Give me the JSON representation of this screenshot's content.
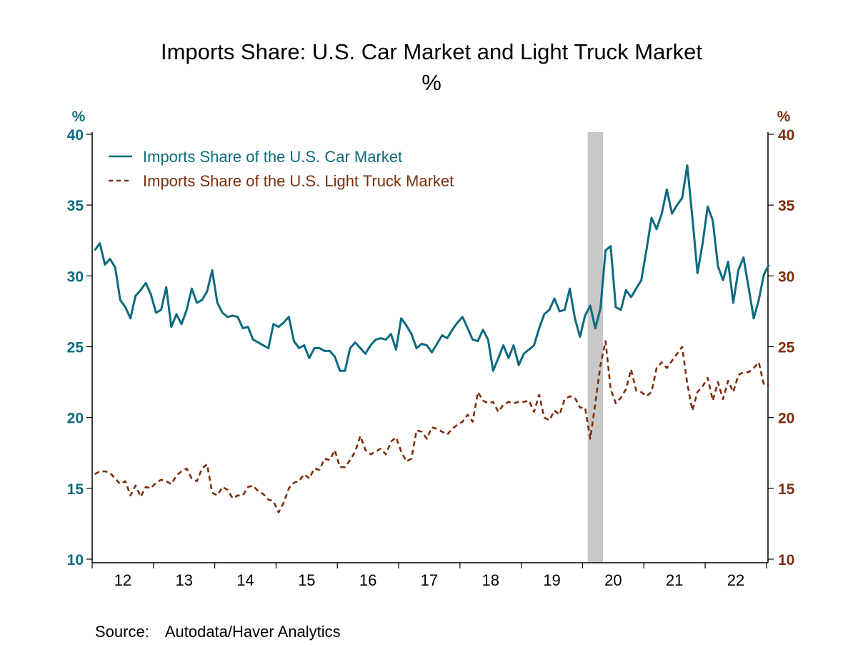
{
  "chart_data": {
    "type": "line",
    "title": "Imports Share: U.S. Car Market and Light Truck Market",
    "subtitle": "%",
    "y_left": {
      "unit_label": "%",
      "range": [
        10,
        40
      ],
      "ticks": [
        "10",
        "15",
        "20",
        "25",
        "30",
        "35",
        "40"
      ],
      "color": "#0e6a7e"
    },
    "y_right": {
      "unit_label": "%",
      "range": [
        10,
        40
      ],
      "ticks": [
        "10",
        "15",
        "20",
        "25",
        "30",
        "35",
        "40"
      ],
      "color": "#7a2e0c"
    },
    "x_tick_labels": [
      "12",
      "13",
      "14",
      "15",
      "16",
      "17",
      "18",
      "19",
      "20",
      "21",
      "22"
    ],
    "x_years": [
      2012,
      2013,
      2014,
      2015,
      2016,
      2017,
      2018,
      2019,
      2020,
      2021,
      2022
    ],
    "grid": false,
    "legend_placement": "top-left",
    "recession_shading": {
      "start": "2020-02",
      "end": "2020-04",
      "color": "#c8c8c8"
    },
    "x": [
      "2012-01",
      "2012-02",
      "2012-03",
      "2012-04",
      "2012-05",
      "2012-06",
      "2012-07",
      "2012-08",
      "2012-09",
      "2012-10",
      "2012-11",
      "2012-12",
      "2013-01",
      "2013-02",
      "2013-03",
      "2013-04",
      "2013-05",
      "2013-06",
      "2013-07",
      "2013-08",
      "2013-09",
      "2013-10",
      "2013-11",
      "2013-12",
      "2014-01",
      "2014-02",
      "2014-03",
      "2014-04",
      "2014-05",
      "2014-06",
      "2014-07",
      "2014-08",
      "2014-09",
      "2014-10",
      "2014-11",
      "2014-12",
      "2015-01",
      "2015-02",
      "2015-03",
      "2015-04",
      "2015-05",
      "2015-06",
      "2015-07",
      "2015-08",
      "2015-09",
      "2015-10",
      "2015-11",
      "2015-12",
      "2016-01",
      "2016-02",
      "2016-03",
      "2016-04",
      "2016-05",
      "2016-06",
      "2016-07",
      "2016-08",
      "2016-09",
      "2016-10",
      "2016-11",
      "2016-12",
      "2017-01",
      "2017-02",
      "2017-03",
      "2017-04",
      "2017-05",
      "2017-06",
      "2017-07",
      "2017-08",
      "2017-09",
      "2017-10",
      "2017-11",
      "2017-12",
      "2018-01",
      "2018-02",
      "2018-03",
      "2018-04",
      "2018-05",
      "2018-06",
      "2018-07",
      "2018-08",
      "2018-09",
      "2018-10",
      "2018-11",
      "2018-12",
      "2019-01",
      "2019-02",
      "2019-03",
      "2019-04",
      "2019-05",
      "2019-06",
      "2019-07",
      "2019-08",
      "2019-09",
      "2019-10",
      "2019-11",
      "2019-12",
      "2020-01",
      "2020-02",
      "2020-03",
      "2020-04",
      "2020-05",
      "2020-06",
      "2020-07",
      "2020-08",
      "2020-09",
      "2020-10",
      "2020-11",
      "2020-12",
      "2021-01",
      "2021-02",
      "2021-03",
      "2021-04",
      "2021-05",
      "2021-06",
      "2021-07",
      "2021-08",
      "2021-09",
      "2021-10",
      "2021-11",
      "2021-12",
      "2022-01",
      "2022-02",
      "2022-03",
      "2022-04",
      "2022-05",
      "2022-06",
      "2022-07",
      "2022-08",
      "2022-09",
      "2022-10",
      "2022-11",
      "2022-12",
      "2023-01"
    ],
    "series": [
      {
        "name": "Imports Share of the U.S. Car Market",
        "color": "#0e6a7e",
        "style": "solid",
        "axis": "left",
        "values": [
          31.8,
          32.3,
          30.8,
          31.2,
          30.6,
          28.3,
          27.8,
          27.0,
          28.6,
          29.0,
          29.5,
          28.7,
          27.4,
          27.6,
          29.2,
          26.4,
          27.3,
          26.6,
          27.6,
          29.1,
          28.1,
          28.3,
          28.9,
          30.4,
          28.1,
          27.4,
          27.1,
          27.2,
          27.1,
          26.3,
          26.4,
          25.5,
          25.3,
          25.1,
          24.9,
          26.6,
          26.4,
          26.7,
          27.1,
          25.4,
          24.9,
          25.1,
          24.2,
          24.9,
          24.9,
          24.7,
          24.7,
          24.3,
          23.3,
          23.3,
          24.9,
          25.3,
          24.9,
          24.5,
          25.1,
          25.5,
          25.6,
          25.5,
          25.9,
          24.8,
          27.0,
          26.5,
          25.9,
          24.9,
          25.2,
          25.1,
          24.6,
          25.2,
          25.8,
          25.6,
          26.2,
          26.7,
          27.1,
          26.3,
          25.5,
          25.4,
          26.2,
          25.5,
          23.3,
          24.2,
          25.1,
          24.2,
          25.1,
          23.7,
          24.5,
          24.8,
          25.1,
          26.3,
          27.3,
          27.6,
          28.4,
          27.5,
          27.6,
          29.1,
          27.0,
          25.7,
          27.2,
          27.9,
          26.3,
          27.7,
          31.8,
          32.1,
          27.8,
          27.6,
          29.0,
          28.5,
          29.1,
          29.7,
          31.8,
          34.1,
          33.3,
          34.4,
          36.1,
          34.4,
          35.0,
          35.5,
          37.8,
          34.1,
          30.2,
          32.3,
          34.9,
          33.9,
          30.7,
          29.7,
          31.0,
          28.1,
          30.4,
          31.3,
          29.2,
          27.0,
          28.3,
          30.1,
          30.8
        ]
      },
      {
        "name": "Imports Share of the U.S. Light Truck Market",
        "color": "#7a2e0c",
        "style": "dashed",
        "axis": "right",
        "values": [
          16.0,
          16.2,
          16.2,
          16.1,
          15.7,
          15.3,
          15.5,
          14.5,
          15.2,
          14.4,
          15.1,
          15.0,
          15.4,
          15.6,
          15.5,
          15.3,
          15.9,
          16.2,
          16.4,
          15.7,
          15.5,
          16.4,
          16.7,
          14.7,
          14.5,
          15.1,
          14.9,
          14.3,
          14.5,
          14.5,
          15.1,
          15.2,
          14.8,
          14.6,
          14.2,
          14.1,
          13.3,
          14.0,
          15.0,
          15.4,
          15.5,
          16.0,
          15.7,
          16.4,
          16.3,
          17.1,
          17.0,
          17.7,
          16.5,
          16.5,
          17.0,
          17.6,
          18.7,
          17.7,
          17.4,
          17.6,
          17.8,
          17.4,
          18.3,
          18.6,
          17.6,
          16.9,
          17.1,
          19.1,
          19.0,
          18.5,
          19.3,
          19.2,
          19.0,
          18.8,
          19.2,
          19.5,
          19.7,
          20.2,
          19.7,
          21.8,
          21.2,
          21.0,
          21.1,
          20.4,
          20.9,
          21.1,
          21.0,
          21.1,
          21.1,
          21.2,
          20.4,
          21.6,
          20.0,
          19.8,
          20.5,
          20.2,
          21.3,
          21.5,
          21.4,
          20.7,
          20.7,
          18.5,
          21.0,
          23.7,
          25.4,
          22.0,
          21.0,
          21.4,
          22.0,
          23.4,
          21.9,
          21.8,
          21.5,
          21.8,
          23.5,
          23.9,
          23.5,
          24.0,
          24.5,
          25.0,
          22.4,
          20.5,
          21.8,
          22.2,
          22.8,
          21.2,
          22.5,
          21.3,
          22.6,
          21.8,
          23.0,
          23.2,
          23.2,
          23.5,
          23.9,
          22.3,
          22.3
        ]
      }
    ]
  },
  "source": {
    "label": "Source:",
    "text": "Autodata/Haver Analytics"
  }
}
